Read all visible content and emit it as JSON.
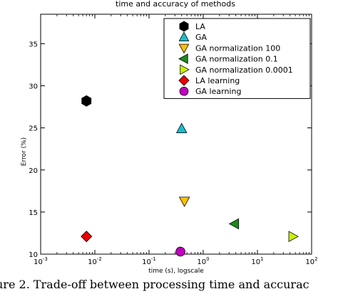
{
  "chart_data": {
    "type": "scatter",
    "title": "time and accuracy of methods",
    "xlabel": "time (s), logscale",
    "ylabel": "Error (%)",
    "xscale": "log",
    "xlim": [
      0.001,
      100
    ],
    "ylim": [
      10,
      38.5
    ],
    "xticks": [
      0.001,
      0.01,
      0.1,
      1,
      10,
      100
    ],
    "xtick_labels": [
      {
        "base": "10",
        "exp": "-3"
      },
      {
        "base": "10",
        "exp": "-2"
      },
      {
        "base": "10",
        "exp": "-1"
      },
      {
        "base": "10",
        "exp": "0"
      },
      {
        "base": "10",
        "exp": "1"
      },
      {
        "base": "10",
        "exp": "2"
      }
    ],
    "yticks": [
      10,
      15,
      20,
      25,
      30,
      35
    ],
    "ytick_labels": [
      "10",
      "15",
      "20",
      "25",
      "30",
      "35"
    ],
    "grid": false,
    "legend_position": "top-right",
    "series": [
      {
        "name": "LA",
        "marker": "hexagon",
        "color": "#000000",
        "x": 0.007,
        "y": 28.2
      },
      {
        "name": "GA",
        "marker": "triangle-up",
        "color": "#17becf",
        "x": 0.4,
        "y": 24.9
      },
      {
        "name": "GA normalization 100",
        "marker": "triangle-down",
        "color": "#ffc000",
        "x": 0.45,
        "y": 16.3
      },
      {
        "name": "GA normalization 0.1",
        "marker": "triangle-left",
        "color": "#1a8a1a",
        "x": 3.8,
        "y": 13.6
      },
      {
        "name": "GA normalization 0.0001",
        "marker": "triangle-right",
        "color": "#c8f000",
        "x": 45,
        "y": 12.1
      },
      {
        "name": "LA learning",
        "marker": "diamond",
        "color": "#ee0000",
        "x": 0.007,
        "y": 12.1
      },
      {
        "name": "GA learning",
        "marker": "circle",
        "color": "#bf00bf",
        "x": 0.38,
        "y": 10.3
      }
    ]
  },
  "caption": {
    "text": "ure 2. Trade-off between processing time and accurac"
  }
}
